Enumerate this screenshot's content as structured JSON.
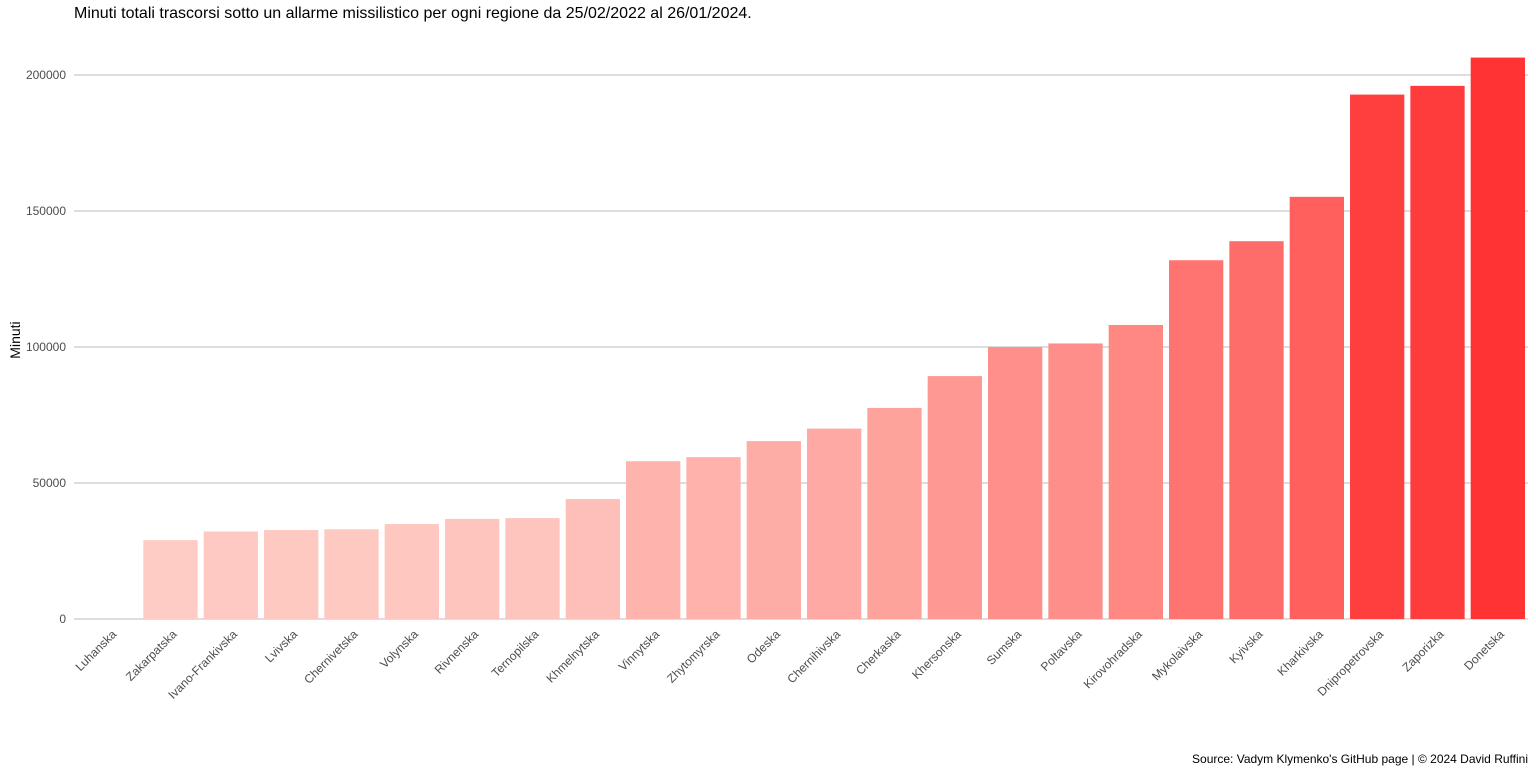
{
  "chart_data": {
    "type": "bar",
    "title": "Minuti totali trascorsi sotto un allarme missilistico per ogni regione da 25/02/2022 al 26/01/2024.",
    "xlabel": "",
    "ylabel": "Minuti",
    "caption": "Source: Vadym Klymenko's GitHub page | © 2024 David Ruffini",
    "ylim": [
      0,
      210000
    ],
    "yticks": [
      0,
      50000,
      100000,
      150000,
      200000
    ],
    "ytick_labels": [
      "0",
      "50000",
      "100000",
      "150000",
      "200000"
    ],
    "grid": "horizontal",
    "legend": "none",
    "color_scale": {
      "low": "#fee5dc",
      "high": "#ff3333"
    },
    "categories": [
      "Luhanska",
      "Zakarpatska",
      "Ivano-Frankivska",
      "Lvivska",
      "Chernivetska",
      "Volynska",
      "Rivnenska",
      "Ternopilska",
      "Khmelnytska",
      "Vinnytska",
      "Zhytomyrska",
      "Odeska",
      "Chernihivska",
      "Cherkaska",
      "Khersonska",
      "Sumska",
      "Poltavska",
      "Kirovohradska",
      "Mykolaivska",
      "Kyivska",
      "Kharkivska",
      "Dnipropetrovska",
      "Zaporizka",
      "Donetska"
    ],
    "values": [
      0,
      29000,
      32200,
      32700,
      33000,
      34900,
      36800,
      37100,
      44100,
      58000,
      59500,
      65400,
      70000,
      77600,
      89300,
      100000,
      101300,
      108100,
      131900,
      138900,
      155200,
      192800,
      196000,
      206400
    ]
  }
}
